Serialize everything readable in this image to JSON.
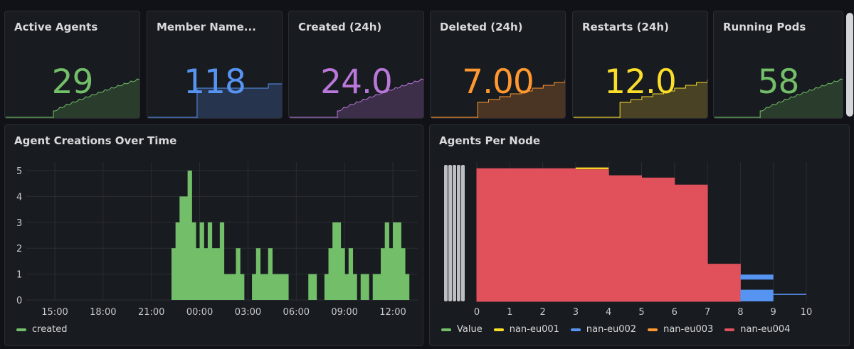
{
  "stats": [
    {
      "title": "Active Agents",
      "value": "29",
      "color": "#73bf69",
      "fill": "#2a3d2c",
      "shape": "ramp"
    },
    {
      "title": "Member Name...",
      "value": "118",
      "color": "#5794f2",
      "fill": "#26344e",
      "shape": "step"
    },
    {
      "title": "Created (24h)",
      "value": "24.0",
      "color": "#b877d9",
      "fill": "#3d2f4a",
      "shape": "ramp"
    },
    {
      "title": "Deleted (24h)",
      "value": "7.00",
      "color": "#ff9830",
      "fill": "#4a3524",
      "shape": "stairs"
    },
    {
      "title": "Restarts (24h)",
      "value": "12.0",
      "color": "#fade2a",
      "fill": "#4a4224",
      "shape": "stairs"
    },
    {
      "title": "Running Pods",
      "value": "58",
      "color": "#73bf69",
      "fill": "#2a3d2c",
      "shape": "ramp"
    }
  ],
  "creations_panel": {
    "title": "Agent Creations Over Time",
    "legend": [
      {
        "label": "created",
        "color": "#73bf69"
      }
    ]
  },
  "nodes_panel": {
    "title": "Agents Per Node",
    "legend": [
      {
        "label": "Value",
        "color": "#73bf69"
      },
      {
        "label": "nan-eu001",
        "color": "#fade2a"
      },
      {
        "label": "nan-eu002",
        "color": "#5794f2"
      },
      {
        "label": "nan-eu003",
        "color": "#ff9830"
      },
      {
        "label": "nan-eu004",
        "color": "#e0515c"
      }
    ]
  },
  "chart_data": [
    {
      "type": "bar",
      "title": "Agent Creations Over Time",
      "x_ticks": [
        "15:00",
        "18:00",
        "21:00",
        "00:00",
        "03:00",
        "06:00",
        "09:00",
        "12:00"
      ],
      "ylim": [
        0,
        5
      ],
      "y_ticks": [
        0,
        1,
        2,
        3,
        4,
        5
      ],
      "series": [
        {
          "name": "created",
          "color": "#73bf69",
          "points": [
            [
              "22:15",
              2
            ],
            [
              "22:30",
              3
            ],
            [
              "22:45",
              4
            ],
            [
              "23:00",
              4
            ],
            [
              "23:15",
              5
            ],
            [
              "23:30",
              3
            ],
            [
              "23:45",
              2
            ],
            [
              "00:00",
              3
            ],
            [
              "00:15",
              2
            ],
            [
              "00:30",
              3
            ],
            [
              "00:45",
              2
            ],
            [
              "01:00",
              2
            ],
            [
              "01:15",
              3
            ],
            [
              "01:30",
              1
            ],
            [
              "01:45",
              1
            ],
            [
              "02:00",
              1
            ],
            [
              "02:15",
              2
            ],
            [
              "02:30",
              1
            ],
            [
              "03:15",
              1
            ],
            [
              "03:30",
              2
            ],
            [
              "03:45",
              1
            ],
            [
              "04:00",
              1
            ],
            [
              "04:15",
              2
            ],
            [
              "04:30",
              1
            ],
            [
              "04:45",
              1
            ],
            [
              "05:00",
              1
            ],
            [
              "05:15",
              1
            ],
            [
              "06:45",
              1
            ],
            [
              "07:00",
              1
            ],
            [
              "07:45",
              1
            ],
            [
              "08:00",
              2
            ],
            [
              "08:15",
              3
            ],
            [
              "08:30",
              3
            ],
            [
              "08:45",
              2
            ],
            [
              "09:00",
              1
            ],
            [
              "09:15",
              2
            ],
            [
              "09:30",
              1
            ],
            [
              "10:00",
              1
            ],
            [
              "10:15",
              1
            ],
            [
              "10:45",
              1
            ],
            [
              "11:00",
              1
            ],
            [
              "11:15",
              2
            ],
            [
              "11:30",
              3
            ],
            [
              "11:45",
              2
            ],
            [
              "12:00",
              3
            ],
            [
              "12:15",
              3
            ],
            [
              "12:30",
              2
            ],
            [
              "12:45",
              1
            ]
          ]
        }
      ]
    },
    {
      "type": "area",
      "title": "Agents Per Node",
      "xlim": [
        0,
        10
      ],
      "x_ticks": [
        0,
        1,
        2,
        3,
        4,
        5,
        6,
        7,
        8,
        9,
        10
      ],
      "series": [
        {
          "name": "nan-eu004",
          "color": "#e0515c",
          "x": [
            0,
            3,
            3,
            4,
            4,
            5,
            5,
            6,
            6,
            7,
            7,
            8
          ],
          "y": [
            5.7,
            5.7,
            5.65,
            5.65,
            5.4,
            5.4,
            5.3,
            5.3,
            5.0,
            5.0,
            1.6,
            1.6
          ]
        },
        {
          "name": "nan-eu003",
          "color": "#ff9830",
          "x": [
            3,
            4
          ],
          "y": [
            5.7,
            5.7
          ]
        },
        {
          "name": "nan-eu001",
          "color": "#fade2a",
          "x": [
            3,
            4
          ],
          "y": [
            5.72,
            5.72
          ]
        },
        {
          "name": "nan-eu002",
          "color": "#5794f2",
          "x": [
            8,
            9,
            9,
            10
          ],
          "y": [
            1.1,
            1.1,
            0.5,
            0.3
          ]
        }
      ]
    }
  ]
}
